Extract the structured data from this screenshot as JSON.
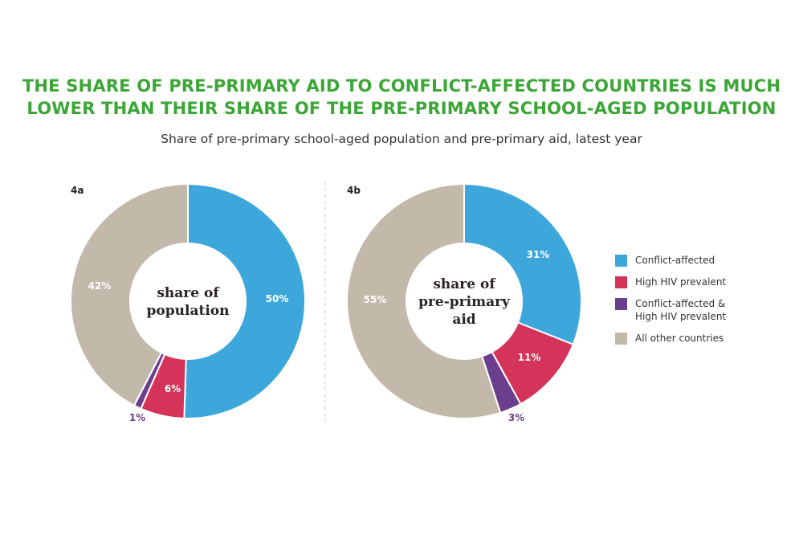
{
  "title_line1": "THE SHARE OF PRE-PRIMARY AID TO CONFLICT-AFFECTED COUNTRIES IS MUCH",
  "title_line2": "LOWER THAN THEIR SHARE OF THE PRE-PRIMARY SCHOOL-AGED POPULATION",
  "subtitle": "Share of pre-primary school-aged population and pre-primary aid, latest year",
  "colors": {
    "conflict": "#3da7dc",
    "hiv": "#d5345a",
    "both": "#6b3f8e",
    "other": "#c2b9ab",
    "title": "#3aa635"
  },
  "legend": [
    {
      "label": "Conflict-affected",
      "color": "#3da7dc"
    },
    {
      "label": "High HIV prevalent",
      "color": "#d5345a"
    },
    {
      "label": "Conflict-affected &\nHigh HIV prevalent",
      "color": "#6b3f8e"
    },
    {
      "label": "All other countries",
      "color": "#c2b9ab"
    }
  ],
  "chart_data": [
    {
      "type": "pie",
      "panel": "4a",
      "center_label": [
        "share of",
        "population"
      ],
      "slices": [
        {
          "category": "Conflict-affected",
          "value": 50,
          "label": "50%",
          "color": "#3da7dc"
        },
        {
          "category": "High HIV prevalent",
          "value": 6,
          "label": "6%",
          "color": "#d5345a"
        },
        {
          "category": "Conflict-affected & High HIV prevalent",
          "value": 1,
          "label": "1%",
          "color": "#6b3f8e"
        },
        {
          "category": "All other countries",
          "value": 42,
          "label": "42%",
          "color": "#c2b9ab"
        }
      ]
    },
    {
      "type": "pie",
      "panel": "4b",
      "center_label": [
        "share of",
        "pre-primary",
        "aid"
      ],
      "slices": [
        {
          "category": "Conflict-affected",
          "value": 31,
          "label": "31%",
          "color": "#3da7dc"
        },
        {
          "category": "High HIV prevalent",
          "value": 11,
          "label": "11%",
          "color": "#d5345a"
        },
        {
          "category": "Conflict-affected & High HIV prevalent",
          "value": 3,
          "label": "3%",
          "color": "#6b3f8e"
        },
        {
          "category": "All other countries",
          "value": 55,
          "label": "55%",
          "color": "#c2b9ab"
        }
      ]
    }
  ]
}
